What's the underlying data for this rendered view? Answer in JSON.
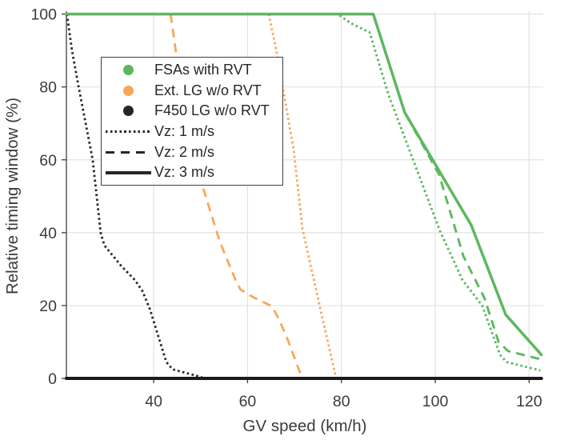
{
  "chart_data": {
    "type": "line",
    "title": "",
    "xlabel": "GV speed (km/h)",
    "ylabel": "Relative timing window (%)",
    "xlim": [
      21.4,
      123
    ],
    "ylim": [
      0,
      100
    ],
    "xticks": [
      40,
      60,
      80,
      100,
      120
    ],
    "yticks": [
      0,
      20,
      40,
      60,
      80,
      100
    ],
    "grid": true,
    "legend_position": "upper-left-inside",
    "colors": {
      "fsa_green": "#5cb85f",
      "ext_orange": "#f8a75a",
      "f450_black": "#262626",
      "baseline_black": "#1a1a1a",
      "grid": "#e2e2e2",
      "axis": "#3f3f3f",
      "text": "#3b3b3b"
    },
    "series": [
      {
        "id": "ext-lg-vz1",
        "group": "Ext. LG w/o RVT",
        "vz": "Vz: 1 m/s",
        "color_key": "ext_orange",
        "style": "dotted",
        "width": 2.8,
        "points": [
          [
            64.5,
            100
          ],
          [
            66,
            91
          ],
          [
            69.8,
            63
          ],
          [
            71.7,
            41
          ],
          [
            75.7,
            18
          ],
          [
            78.8,
            0.5
          ]
        ]
      },
      {
        "id": "ext-lg-vz2",
        "group": "Ext. LG w/o RVT",
        "vz": "Vz: 2 m/s",
        "color_key": "ext_orange",
        "style": "dashed",
        "width": 2.8,
        "points": [
          [
            43.6,
            100
          ],
          [
            44.8,
            89
          ],
          [
            50.6,
            52
          ],
          [
            54.1,
            37.5
          ],
          [
            57.6,
            26.5
          ],
          [
            58.5,
            24.4
          ],
          [
            61.3,
            22.2
          ],
          [
            65.2,
            19.8
          ],
          [
            66.6,
            16.5
          ],
          [
            68.3,
            11.5
          ],
          [
            71.5,
            0.5
          ]
        ]
      },
      {
        "id": "f450-lg-vz1",
        "group": "F450 LG w/o RVT",
        "vz": "Vz: 1 m/s",
        "color_key": "f450_black",
        "style": "dotted",
        "width": 2.8,
        "points": [
          [
            21.5,
            100
          ],
          [
            22.6,
            90
          ],
          [
            24,
            80
          ],
          [
            27,
            60
          ],
          [
            28.7,
            40
          ],
          [
            29.5,
            36.5
          ],
          [
            33,
            31
          ],
          [
            36,
            27
          ],
          [
            37.6,
            24
          ],
          [
            39.2,
            19
          ],
          [
            41,
            11.5
          ],
          [
            42.7,
            4.5
          ],
          [
            44,
            2.5
          ],
          [
            50.3,
            0.3
          ]
        ]
      },
      {
        "id": "f450-lg-vz3",
        "group": "F450 LG w/o RVT",
        "vz": "Vz: 3 m/s",
        "color_key": "baseline_black",
        "style": "solid",
        "width": 4,
        "points": [
          [
            21.4,
            0
          ],
          [
            122.6,
            0
          ]
        ]
      },
      {
        "id": "fsa-vz1",
        "group": "FSAs with RVT",
        "vz": "Vz: 1 m/s",
        "color_key": "fsa_green",
        "style": "dotted",
        "width": 2.9,
        "points": [
          [
            21.4,
            100
          ],
          [
            79.2,
            100
          ],
          [
            82,
            97.5
          ],
          [
            86,
            95
          ],
          [
            90,
            78
          ],
          [
            101,
            40.5
          ],
          [
            105.8,
            27
          ],
          [
            110,
            20
          ],
          [
            113.8,
            6.5
          ],
          [
            115.2,
            4.5
          ],
          [
            122.4,
            2.2
          ]
        ]
      },
      {
        "id": "fsa-vz2",
        "group": "FSAs with RVT",
        "vz": "Vz: 2 m/s",
        "color_key": "fsa_green",
        "style": "dashed",
        "width": 2.9,
        "points": [
          [
            21.4,
            100
          ],
          [
            86.8,
            100
          ],
          [
            93.5,
            73
          ],
          [
            100.8,
            56
          ],
          [
            106,
            33.5
          ],
          [
            110.5,
            22
          ],
          [
            113.5,
            10
          ],
          [
            115.5,
            7.5
          ],
          [
            122.6,
            5.2
          ]
        ]
      },
      {
        "id": "fsa-vz3",
        "group": "FSAs with RVT",
        "vz": "Vz: 3 m/s",
        "color_key": "fsa_green",
        "style": "solid",
        "width": 3.5,
        "points": [
          [
            21.4,
            100
          ],
          [
            86.8,
            100
          ],
          [
            93.5,
            73
          ],
          [
            107.7,
            42
          ],
          [
            115,
            17.5
          ],
          [
            122.6,
            6.5
          ]
        ]
      }
    ],
    "legend": {
      "color_entries": [
        {
          "label": "FSAs with RVT",
          "color_key": "fsa_green"
        },
        {
          "label": "Ext. LG w/o RVT",
          "color_key": "ext_orange"
        },
        {
          "label": "F450 LG w/o RVT",
          "color_key": "f450_black"
        }
      ],
      "style_entries": [
        {
          "label": "Vz: 1 m/s",
          "style": "dotted"
        },
        {
          "label": "Vz: 2 m/s",
          "style": "dashed"
        },
        {
          "label": "Vz: 3 m/s",
          "style": "solid"
        }
      ]
    }
  }
}
